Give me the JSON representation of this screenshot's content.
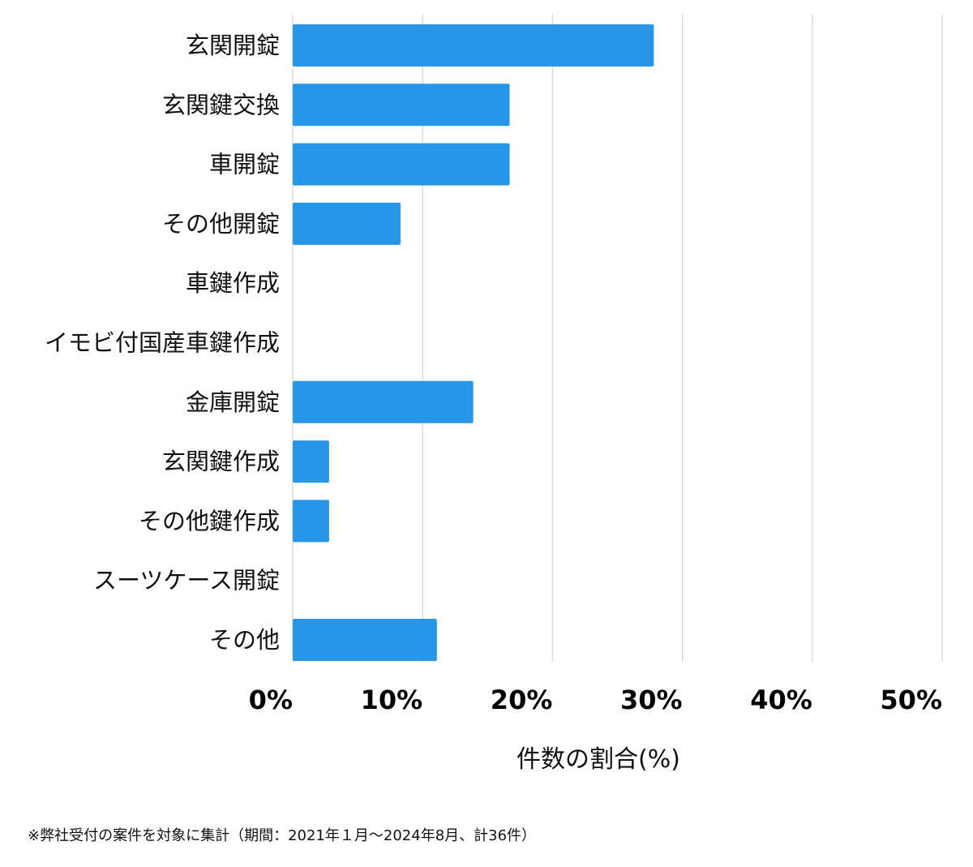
{
  "chart_data": {
    "type": "bar",
    "orientation": "horizontal",
    "categories": [
      "玄関開錠",
      "玄関鍵交換",
      "車開錠",
      "その他開錠",
      "車鍵作成",
      "イモビ付国産車鍵作成",
      "金庫開錠",
      "玄関鍵作成",
      "その他鍵作成",
      "スーツケース開錠",
      "その他"
    ],
    "values": [
      27.8,
      16.7,
      16.7,
      8.3,
      0,
      0,
      13.9,
      2.8,
      2.8,
      0,
      11.1
    ],
    "title": "",
    "xlabel": "件数の割合(%)",
    "ylabel": "",
    "xlim": [
      0,
      50
    ],
    "xticks": [
      "0%",
      "10%",
      "20%",
      "30%",
      "40%",
      "50%"
    ],
    "grid": true,
    "bar_color": "#2795e8",
    "grid_color": "#d4d4d4"
  },
  "footnote": "※弊社受付の案件を対象に集計（期間：2021年１月〜2024年8月、計36件）"
}
